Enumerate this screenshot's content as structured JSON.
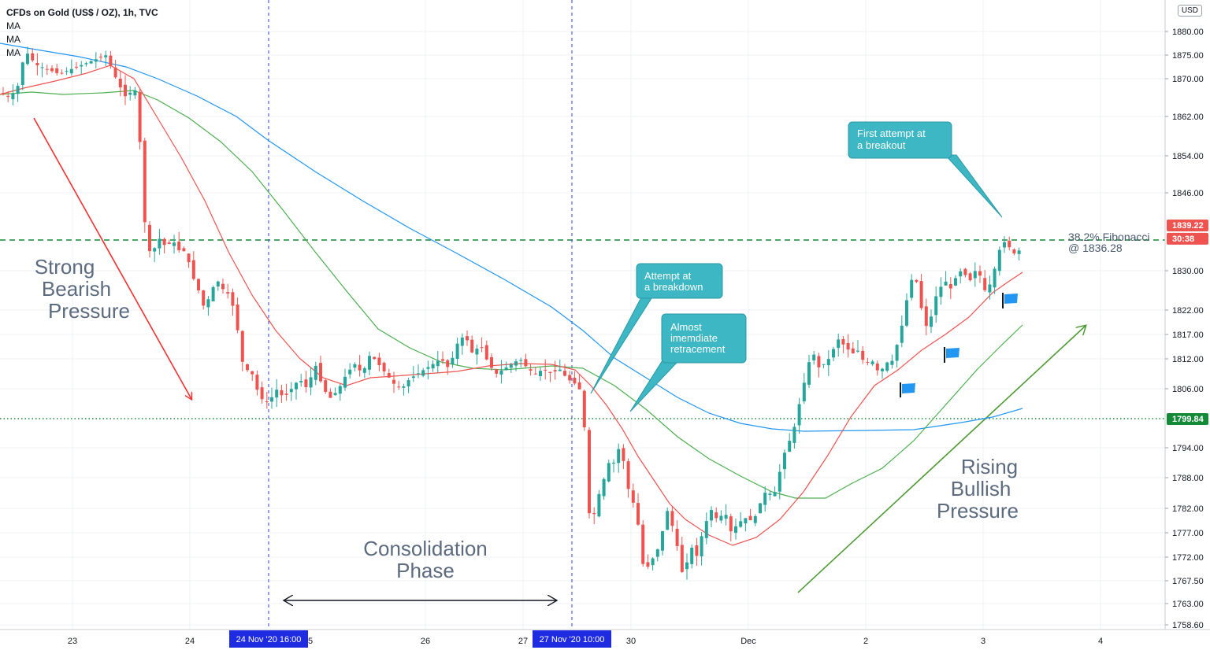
{
  "header": {
    "title": "CFDs on Gold (US$ / OZ), 1h, TVC",
    "indicators": [
      "MA",
      "MA",
      "MA"
    ]
  },
  "axis": {
    "currency": "USD"
  },
  "chart_data": {
    "type": "candlestick",
    "instrument": "CFDs on Gold (US$ / OZ)",
    "interval": "1h",
    "source": "TVC",
    "ylim": [
      1756,
      1886
    ],
    "y_ticks": [
      1758.6,
      1763.0,
      1767.5,
      1772.0,
      1777.0,
      1782.0,
      1788.0,
      1794.0,
      1799.84,
      1806.0,
      1812.0,
      1817.0,
      1822.0,
      1830.0,
      1836.28,
      1839.22,
      1846.0,
      1854.0,
      1862.0,
      1870.0,
      1875.0,
      1880.0
    ],
    "y_tick_labels": [
      "1758.60",
      "1763.00",
      "1767.50",
      "1772.00",
      "1777.00",
      "1782.00",
      "1788.00",
      "1794.00",
      "",
      "1806.00",
      "1812.00",
      "1817.00",
      "1822.00",
      "1830.00",
      "",
      "",
      "1846.00",
      "1854.00",
      "1862.00",
      "1870.00",
      "1875.00",
      "1880.00"
    ],
    "x_ticks": [
      {
        "label": "23",
        "x": 92
      },
      {
        "label": "24",
        "x": 241
      },
      {
        "label": "26",
        "x": 540
      },
      {
        "label": "27",
        "x": 664
      },
      {
        "label": "30",
        "x": 801
      },
      {
        "label": "Dec",
        "x": 950
      },
      {
        "label": "2",
        "x": 1099
      },
      {
        "label": "3",
        "x": 1248
      },
      {
        "label": "4",
        "x": 1397
      }
    ],
    "x_tick_partial": {
      "label": "5",
      "x": 394
    },
    "grid": true,
    "price_labels": [
      {
        "text": "1839.22",
        "value": 1839.22,
        "color": "#ef5350"
      },
      {
        "text": "30:38",
        "value": 1836.6,
        "color": "#ef5350"
      },
      {
        "text": "1799.84",
        "value": 1799.84,
        "color": "#138a36"
      }
    ],
    "time_markers": [
      {
        "label": "24 Nov '20   16:00",
        "x": 341
      },
      {
        "label": "27 Nov '20   10:00",
        "x": 726
      }
    ],
    "horizontal_lines": [
      {
        "value": 1836.28,
        "style": "dashed",
        "color": "#138a36"
      },
      {
        "value": 1799.84,
        "style": "dotted",
        "color": "#138a36"
      }
    ],
    "ma_colors": [
      "#ef5350",
      "#4caf50",
      "#2196f3"
    ],
    "candle_colors": {
      "up": "#26a69a",
      "down": "#ef5350"
    }
  },
  "annotations": {
    "strong_bearish": [
      "Strong",
      "Bearish",
      "Pressure"
    ],
    "consolidation": [
      "Consolidation",
      "Phase"
    ],
    "rising_bullish": [
      "Rising",
      "Bullish",
      "Pressure"
    ],
    "fib_label_1": "38.2% Fibonacci",
    "fib_label_2": "@ 1836.28",
    "callout_breakout_1": "First attempt at",
    "callout_breakout_2": "a breakout",
    "callout_breakdown_1": "Attempt at",
    "callout_breakdown_2": "a breakdown",
    "callout_retrace_1": "Almost",
    "callout_retrace_2": "imemdiate",
    "callout_retrace_3": "retracement"
  }
}
